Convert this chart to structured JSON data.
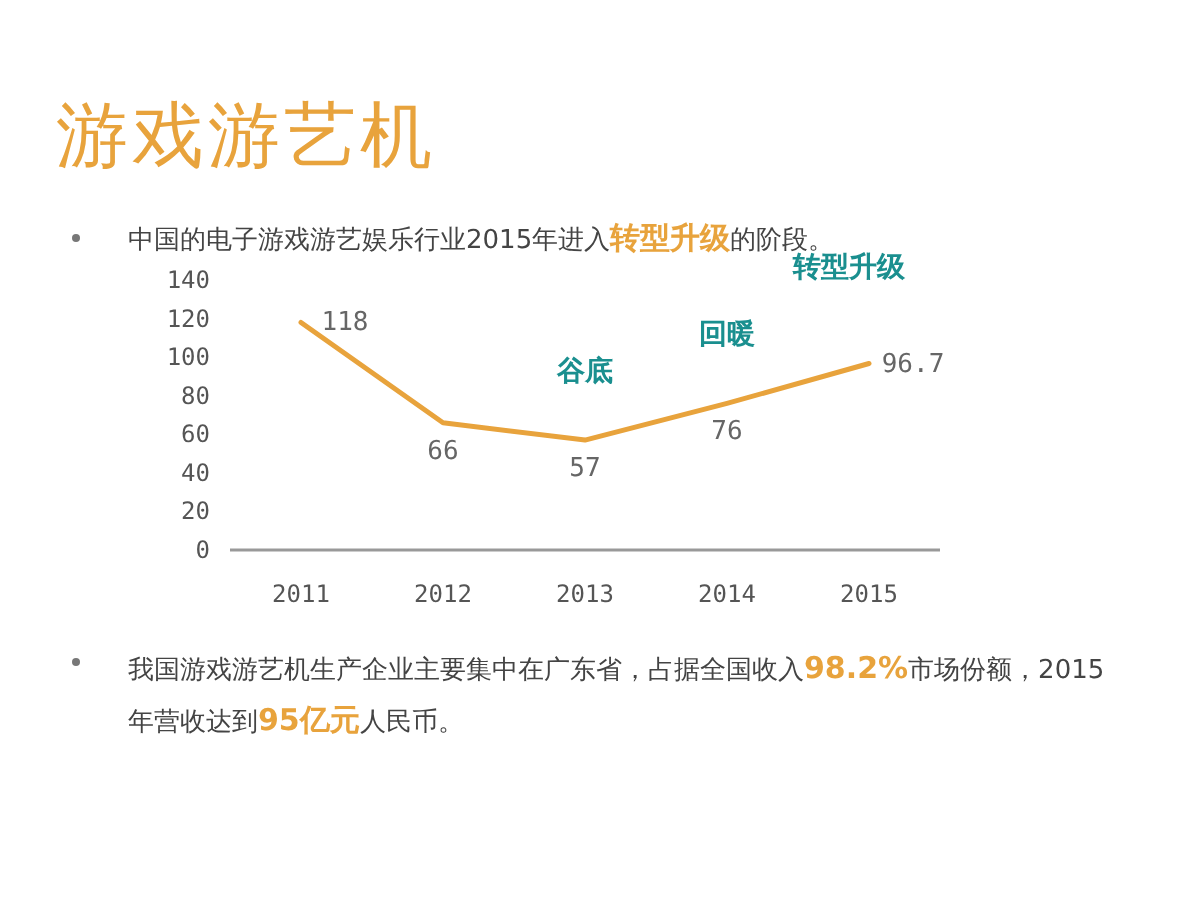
{
  "chart_data": {
    "type": "line",
    "title": "游戏游艺机",
    "subtitle": "中国的电子游戏游艺娱乐行业2015年进入**转型升级**的阶段。",
    "categories": [
      "2011",
      "2012",
      "2013",
      "2014",
      "2015"
    ],
    "values": [
      118,
      66,
      57,
      76,
      96.7
    ],
    "color": "#e8a33c",
    "ylim": [
      0,
      140
    ],
    "yticks": [
      0,
      20,
      40,
      60,
      80,
      100,
      120,
      140
    ],
    "data_labels": true,
    "marker": "none",
    "line_style": "solid",
    "grid": false,
    "annotations": [
      {
        "text": "谷底",
        "x": "2013",
        "y": 57
      },
      {
        "text": "回暖",
        "x": "2014",
        "y": 76
      },
      {
        "text": "转型升级",
        "x": "2015",
        "y": 96.7
      },
      "我国游戏游艺机生产企业主要集中在广东省，占据全国收入**98.2%**市场份额，2015年营收达到**95亿元**人民币。"
    ]
  }
}
